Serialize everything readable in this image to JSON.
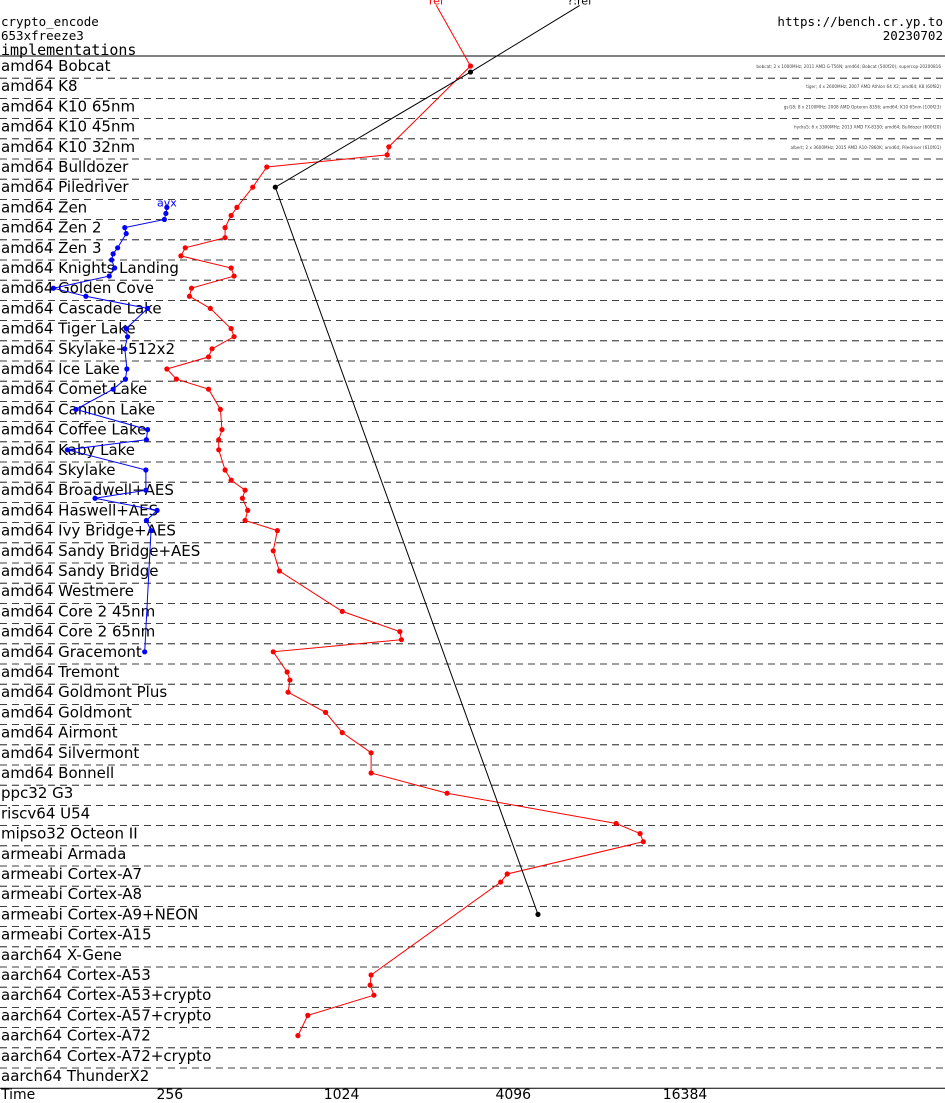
{
  "header": {
    "left_line1": "crypto_encode",
    "left_line2": "653xfreeze3",
    "left_line3": "implementations",
    "right_line1": "https://bench.cr.yp.to",
    "right_line2": "20230702"
  },
  "chart_data": {
    "type": "line",
    "title": "",
    "xlabel": "Time",
    "x_scale": "log2",
    "xlim": [
      40,
      80000
    ],
    "x_ticks": [
      256,
      1024,
      4096,
      16384
    ],
    "x_tick_labels": [
      "256",
      "1024",
      "4096",
      "16384"
    ],
    "grid": "dashed horizontal separators between rows",
    "categories": [
      "amd64 Bobcat",
      "amd64 K8",
      "amd64 K10 65nm",
      "amd64 K10 45nm",
      "amd64 K10 32nm",
      "amd64 Bulldozer",
      "amd64 Piledriver",
      "amd64 Zen",
      "amd64 Zen 2",
      "amd64 Zen 3",
      "amd64 Knights Landing",
      "amd64 Golden Cove",
      "amd64 Cascade Lake",
      "amd64 Tiger Lake",
      "amd64 Skylake+512x2",
      "amd64 Ice Lake",
      "amd64 Comet Lake",
      "amd64 Cannon Lake",
      "amd64 Coffee Lake",
      "amd64 Kaby Lake",
      "amd64 Skylake",
      "amd64 Broadwell+AES",
      "amd64 Haswell+AES",
      "amd64 Ivy Bridge+AES",
      "amd64 Sandy Bridge+AES",
      "amd64 Sandy Bridge",
      "amd64 Westmere",
      "amd64 Core 2 45nm",
      "amd64 Core 2 65nm",
      "amd64 Gracemont",
      "amd64 Tremont",
      "amd64 Goldmont Plus",
      "amd64 Goldmont",
      "amd64 Airmont",
      "amd64 Silvermont",
      "amd64 Bonnell",
      "ppc32 G3",
      "riscv64 U54",
      "mipso32 Octeon II",
      "armeabi Armada",
      "armeabi Cortex-A7",
      "armeabi Cortex-A8",
      "armeabi Cortex-A9+NEON",
      "armeabi Cortex-A15",
      "aarch64 X-Gene",
      "aarch64 Cortex-A53",
      "aarch64 Cortex-A53+crypto",
      "aarch64 Cortex-A57+crypto",
      "aarch64 Cortex-A72",
      "aarch64 Cortex-A72+crypto",
      "aarch64 ThunderX2"
    ],
    "series": [
      {
        "name": "avx",
        "color": "#0000ff",
        "points": [
          {
            "row": 7,
            "x": 250
          },
          {
            "row": 7.3,
            "x": 248
          },
          {
            "row": 7.6,
            "x": 245
          },
          {
            "row": 8,
            "x": 178
          },
          {
            "row": 8.3,
            "x": 180
          },
          {
            "row": 9,
            "x": 168
          },
          {
            "row": 9.3,
            "x": 162
          },
          {
            "row": 9.6,
            "x": 160
          },
          {
            "row": 10,
            "x": 164
          },
          {
            "row": 10.4,
            "x": 157
          },
          {
            "row": 11,
            "x": 100
          },
          {
            "row": 11.4,
            "x": 130
          },
          {
            "row": 12,
            "x": 214
          },
          {
            "row": 13,
            "x": 180
          },
          {
            "row": 13.4,
            "x": 182
          },
          {
            "row": 14,
            "x": 178
          },
          {
            "row": 15,
            "x": 181
          },
          {
            "row": 15.5,
            "x": 179
          },
          {
            "row": 16,
            "x": 162
          },
          {
            "row": 17,
            "x": 120
          },
          {
            "row": 18,
            "x": 214
          },
          {
            "row": 18.5,
            "x": 212
          },
          {
            "row": 19,
            "x": 112
          },
          {
            "row": 20,
            "x": 211
          },
          {
            "row": 21,
            "x": 211
          },
          {
            "row": 21.4,
            "x": 140
          },
          {
            "row": 22,
            "x": 231
          },
          {
            "row": 22.5,
            "x": 212
          },
          {
            "row": 23,
            "x": 220
          },
          {
            "row": 29,
            "x": 209
          }
        ]
      },
      {
        "name": "ref",
        "color": "#ff0000",
        "points": [
          {
            "row": -3,
            "x": 2200
          },
          {
            "row": 0,
            "x": 2900
          },
          {
            "row": 4,
            "x": 1500
          },
          {
            "row": 4.4,
            "x": 1480
          },
          {
            "row": 5,
            "x": 560
          },
          {
            "row": 6,
            "x": 500
          },
          {
            "row": 7,
            "x": 440
          },
          {
            "row": 7.4,
            "x": 420
          },
          {
            "row": 8,
            "x": 400
          },
          {
            "row": 8.5,
            "x": 400
          },
          {
            "row": 9,
            "x": 290
          },
          {
            "row": 9.4,
            "x": 280
          },
          {
            "row": 10,
            "x": 420
          },
          {
            "row": 10.4,
            "x": 430
          },
          {
            "row": 11,
            "x": 305
          },
          {
            "row": 11.4,
            "x": 300
          },
          {
            "row": 12,
            "x": 355
          },
          {
            "row": 13,
            "x": 420
          },
          {
            "row": 13.4,
            "x": 430
          },
          {
            "row": 14,
            "x": 360
          },
          {
            "row": 14.4,
            "x": 350
          },
          {
            "row": 15,
            "x": 250
          },
          {
            "row": 15.5,
            "x": 270
          },
          {
            "row": 16,
            "x": 350
          },
          {
            "row": 17,
            "x": 385
          },
          {
            "row": 18,
            "x": 390
          },
          {
            "row": 18.5,
            "x": 380
          },
          {
            "row": 19,
            "x": 380
          },
          {
            "row": 20,
            "x": 400
          },
          {
            "row": 20.5,
            "x": 420
          },
          {
            "row": 21,
            "x": 470
          },
          {
            "row": 21.4,
            "x": 460
          },
          {
            "row": 22,
            "x": 480
          },
          {
            "row": 22.5,
            "x": 470
          },
          {
            "row": 23,
            "x": 610
          },
          {
            "row": 24,
            "x": 590
          },
          {
            "row": 25,
            "x": 620
          },
          {
            "row": 27,
            "x": 1030
          },
          {
            "row": 28,
            "x": 1640
          },
          {
            "row": 28.4,
            "x": 1660
          },
          {
            "row": 29,
            "x": 590
          },
          {
            "row": 30,
            "x": 660
          },
          {
            "row": 30.4,
            "x": 675
          },
          {
            "row": 31,
            "x": 665
          },
          {
            "row": 32,
            "x": 900
          },
          {
            "row": 33,
            "x": 1030
          },
          {
            "row": 34,
            "x": 1300
          },
          {
            "row": 35,
            "x": 1300
          },
          {
            "row": 36,
            "x": 2400
          },
          {
            "row": 37.5,
            "x": 9400
          },
          {
            "row": 38,
            "x": 11400
          },
          {
            "row": 38.4,
            "x": 11700
          },
          {
            "row": 40,
            "x": 3900
          },
          {
            "row": 40.4,
            "x": 3700
          },
          {
            "row": 45,
            "x": 1300
          },
          {
            "row": 45.5,
            "x": 1290
          },
          {
            "row": 46,
            "x": 1330
          },
          {
            "row": 47,
            "x": 780
          },
          {
            "row": 48,
            "x": 720
          }
        ]
      },
      {
        "name": "?:ref",
        "color": "#000000",
        "points": [
          {
            "row": -3,
            "x": 7000
          },
          {
            "row": 0.3,
            "x": 2900
          },
          {
            "row": 6,
            "x": 600
          },
          {
            "row": 42,
            "x": 5000
          }
        ]
      }
    ],
    "right_annotations": [
      "bobcat; 2 x 1000MHz; 2011 AMD G-T56N; amd64; Bobcat (500f20); supercop-20200816",
      "tiger; 4 x 2600MHz; 2007 AMD Athlon 64 X2; amd64; K8 (60f82)",
      "gsi18; 8 x 2100MHz; 2008 AMD Opteron 8356; amd64; K10 65nm (100f23)",
      "hydra5; 6 x 3300MHz; 2013 AMD FX-8350; amd64; Bulldozer (600f20)",
      "albert; 2 x 3600MHz; 2015 AMD A10-7860K; amd64; Piledriver (610f01)"
    ]
  }
}
